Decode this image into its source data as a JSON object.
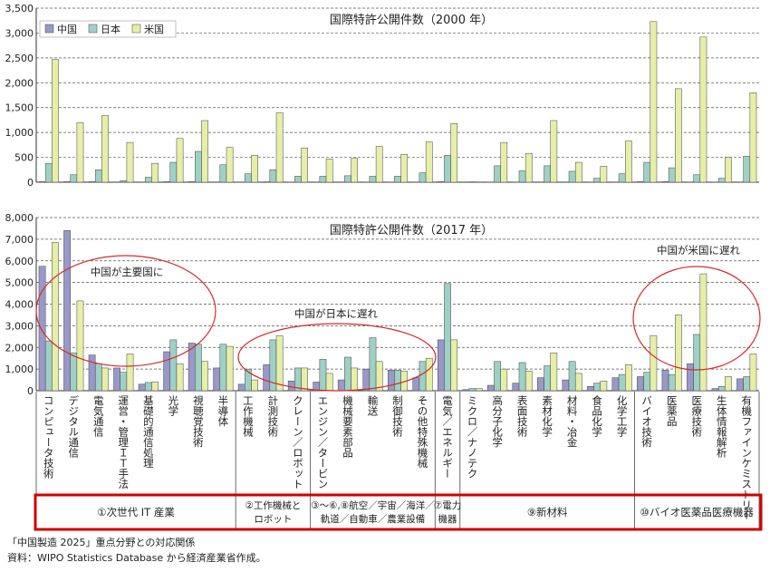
{
  "chart_data": [
    {
      "type": "bar",
      "title": "国際特許公開件数（2000 年）",
      "ylim": [
        0,
        3500
      ],
      "yticks": [
        "0",
        "500",
        "1,000",
        "1,500",
        "2,000",
        "2,500",
        "3,000",
        "3,500"
      ],
      "grid": true,
      "legend_position": "top-left",
      "series_names": [
        "中国",
        "日本",
        "米国"
      ],
      "colors": {
        "中国": "#9a98c8",
        "日本": "#9fd0c5",
        "米国": "#e6eea8"
      },
      "categories": [
        "コンピュータ技術",
        "デジタル通信",
        "電気通信",
        "運営・管理ＩＴ手法",
        "基礎的通信処理",
        "光学",
        "視聴覚技術",
        "半導体",
        "工作機械",
        "計測技術",
        "クレーン／ロボット",
        "エンジン／タービン",
        "機械要素部品",
        "輸送",
        "制御技術",
        "その他特殊機械",
        "電気／エネルギー",
        "ミクロ／ナノテク",
        "高分子化学",
        "表面技術",
        "素材化学",
        "材料・冶金",
        "食品化学",
        "化学工学",
        "バイオ技術",
        "医薬品",
        "医療技術",
        "生体情報解析",
        "有機ファインケミストリー"
      ],
      "series": [
        {
          "name": "中国",
          "values": [
            10,
            10,
            10,
            5,
            3,
            10,
            10,
            5,
            5,
            8,
            3,
            5,
            5,
            3,
            3,
            5,
            10,
            0,
            2,
            3,
            5,
            5,
            3,
            5,
            10,
            10,
            5,
            3,
            5
          ]
        },
        {
          "name": "日本",
          "values": [
            380,
            150,
            250,
            30,
            100,
            400,
            620,
            350,
            170,
            250,
            120,
            120,
            130,
            120,
            120,
            190,
            540,
            8,
            330,
            230,
            330,
            220,
            80,
            170,
            400,
            290,
            150,
            80,
            520
          ]
        },
        {
          "name": "米国",
          "values": [
            2470,
            1200,
            1340,
            800,
            380,
            880,
            1240,
            700,
            540,
            1400,
            690,
            470,
            480,
            720,
            560,
            810,
            1180,
            5,
            800,
            580,
            1240,
            400,
            320,
            830,
            3230,
            1880,
            2920,
            500,
            1800
          ]
        }
      ]
    },
    {
      "type": "bar",
      "title": "国際特許公開件数（2017 年）",
      "ylim": [
        0,
        8000
      ],
      "yticks": [
        "0",
        "1,000",
        "2,000",
        "3,000",
        "4,000",
        "5,000",
        "6,000",
        "7,000",
        "8,000"
      ],
      "grid": true,
      "categories": [
        "コンピュータ技術",
        "デジタル通信",
        "電気通信",
        "運営・管理ＩＴ手法",
        "基礎的通信処理",
        "光学",
        "視聴覚技術",
        "半導体",
        "工作機械",
        "計測技術",
        "クレーン／ロボット",
        "エンジン／タービン",
        "機械要素部品",
        "輸送",
        "制御技術",
        "その他特殊機械",
        "電気／エネルギー",
        "ミクロ／ナノテク",
        "高分子化学",
        "表面技術",
        "素材化学",
        "材料・冶金",
        "食品化学",
        "化学工学",
        "バイオ技術",
        "医薬品",
        "医療技術",
        "生体情報解析",
        "有機ファインケミストリー"
      ],
      "series": [
        {
          "name": "中国",
          "values": [
            5750,
            7400,
            1650,
            1050,
            300,
            1800,
            2200,
            1050,
            300,
            1200,
            450,
            400,
            500,
            1000,
            950,
            600,
            2350,
            50,
            250,
            350,
            600,
            500,
            200,
            600,
            650,
            950,
            1250,
            100,
            550
          ]
        },
        {
          "name": "日本",
          "values": [
            2300,
            1750,
            1250,
            850,
            380,
            2350,
            2150,
            2150,
            1000,
            2350,
            1050,
            1450,
            1550,
            2450,
            950,
            1350,
            4950,
            100,
            1350,
            1300,
            1150,
            1350,
            350,
            750,
            850,
            750,
            2600,
            200,
            650
          ]
        },
        {
          "name": "米国",
          "values": [
            6850,
            4150,
            1050,
            1700,
            400,
            1250,
            1350,
            2050,
            500,
            2550,
            1050,
            800,
            1050,
            1350,
            900,
            1500,
            2350,
            100,
            1000,
            900,
            1750,
            800,
            450,
            1200,
            2550,
            3500,
            5400,
            650,
            1700
          ]
        }
      ],
      "annotations": [
        "中国が主要国に",
        "中国が日本に遅れ",
        "中国が米国に遅れ"
      ]
    }
  ],
  "groups": [
    {
      "label": "①次世代 IT 産業",
      "start": 0,
      "end": 7
    },
    {
      "label": "②工作機械と\nロボット",
      "start": 8,
      "end": 10
    },
    {
      "label": "③〜⑥,⑧航空／宇宙／海洋／\n軌道／自動車／農業設備",
      "start": 11,
      "end": 15
    },
    {
      "label": "⑦電力\n機器",
      "start": 16,
      "end": 16
    },
    {
      "label": "⑨新材料",
      "start": 17,
      "end": 23
    },
    {
      "label": "⑩バイオ医薬品医療機器",
      "start": 24,
      "end": 28
    }
  ],
  "notes": {
    "caption": "「中国製造 2025」重点分野との対応関係",
    "source": "資料：WIPO Statistics Database から経済産業省作成。"
  }
}
